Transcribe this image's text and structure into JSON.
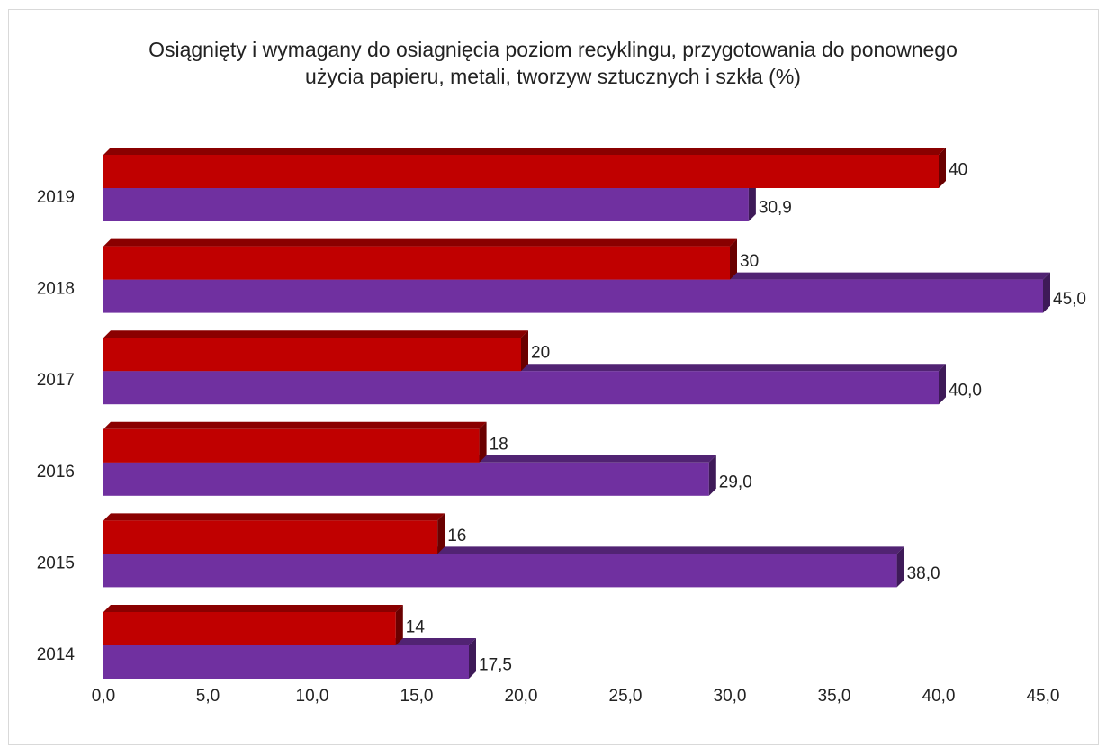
{
  "chart_data": {
    "type": "bar",
    "orientation": "horizontal",
    "title_lines": [
      "Osiągnięty i wymagany do osiagnięcia poziom recyklingu, przygotowania do ponownego",
      "użycia papieru, metali, tworzyw sztucznych i szkła (%)"
    ],
    "categories": [
      "2019",
      "2018",
      "2017",
      "2016",
      "2015",
      "2014"
    ],
    "series": [
      {
        "color": "#c00000",
        "values": [
          40,
          30,
          20,
          18,
          16,
          14
        ],
        "labels": [
          "40",
          "30",
          "20",
          "18",
          "16",
          "14"
        ]
      },
      {
        "color": "#7030a0",
        "values": [
          30.9,
          45.0,
          40.0,
          29.0,
          38.0,
          17.5
        ],
        "labels": [
          "30,9",
          "45,0",
          "40,0",
          "29,0",
          "38,0",
          "17,5"
        ]
      }
    ],
    "xlim": [
      0,
      45
    ],
    "xticks": [
      "0,0",
      "5,0",
      "10,0",
      "15,0",
      "20,0",
      "25,0",
      "30,0",
      "35,0",
      "40,0",
      "45,0"
    ],
    "xlabel": "",
    "ylabel": "",
    "grid": false,
    "legend": "none"
  }
}
